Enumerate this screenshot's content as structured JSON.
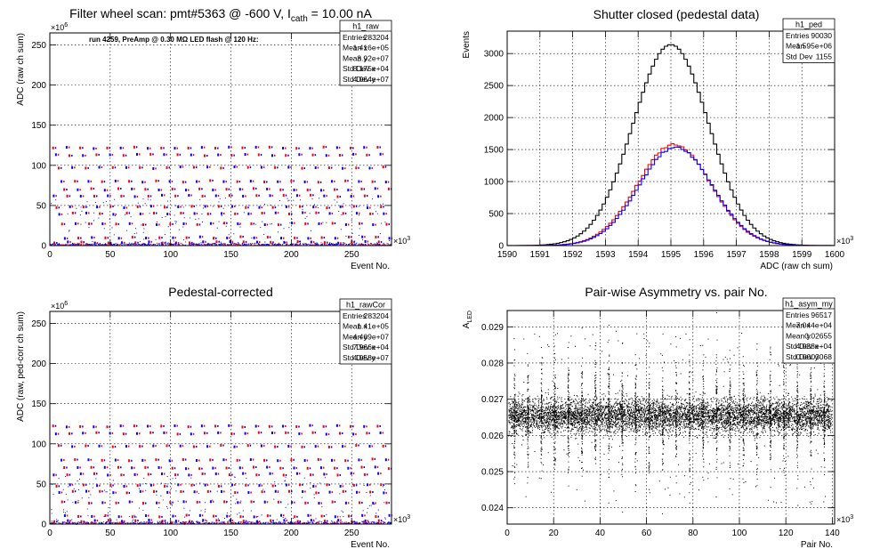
{
  "colors": {
    "red": "#ff0000",
    "blue": "#0000ff",
    "black": "#000000"
  },
  "chart_data": [
    {
      "id": "raw",
      "type": "scatter",
      "title": "Filter wheel scan: pmt#5363 @  -600 V, I",
      "title_sub": "cath",
      "title_tail": " = 10.00 nA",
      "annotation": "run 4259, PreAmp @ 0.30 MΩ LED flash @  120 Hz:",
      "xlabel": "Event No.",
      "ylabel": "ADC (raw ch sum)",
      "x_exponent": "×10",
      "x_exponent_power": "3",
      "y_exponent": "×10",
      "y_exponent_power": "6",
      "xlim": [
        0,
        283
      ],
      "ylim": [
        0,
        265
      ],
      "xticks": [
        0,
        50,
        100,
        150,
        200,
        250
      ],
      "yticks": [
        0,
        50,
        100,
        150,
        200,
        250
      ],
      "levels": [
        122,
        113,
        97,
        80,
        70,
        62,
        48,
        40,
        27,
        10,
        4
      ],
      "stats": {
        "name": "h1_raw",
        "rows": [
          [
            "Entries",
            "283204"
          ],
          [
            "Mean x",
            "1.416e+05"
          ],
          [
            "Mean y",
            "3.92e+07"
          ],
          [
            "Std Dev x",
            "8.175e+04"
          ],
          [
            "Std Dev y",
            "4.064e+07"
          ]
        ]
      }
    },
    {
      "id": "ped",
      "type": "line",
      "title": "Shutter closed (pedestal data)",
      "xlabel": "ADC (raw ch sum)",
      "ylabel": "Events",
      "x_exponent": "×10",
      "x_exponent_power": "3",
      "xlim": [
        1590,
        1600
      ],
      "ylim": [
        0,
        3350
      ],
      "xticks": [
        1590,
        1591,
        1592,
        1593,
        1594,
        1595,
        1596,
        1597,
        1598,
        1599,
        1600
      ],
      "yticks": [
        0,
        500,
        1000,
        1500,
        2000,
        2500,
        3000
      ],
      "series": [
        {
          "color": "black",
          "mean": 1595.0,
          "sigma": 1.155,
          "peak": 3140
        },
        {
          "color": "red",
          "mean": 1595.1,
          "sigma": 1.12,
          "peak": 1580
        },
        {
          "color": "blue",
          "mean": 1595.15,
          "sigma": 1.12,
          "peak": 1540
        }
      ],
      "stats": {
        "name": "h1_ped",
        "rows": [
          [
            "Entries",
            "90030"
          ],
          [
            "Mean",
            "1.595e+06"
          ],
          [
            "Std Dev",
            "1155"
          ]
        ]
      }
    },
    {
      "id": "rawCor",
      "type": "scatter",
      "title": "Pedestal-corrected",
      "xlabel": "Event No.",
      "ylabel": "ADC (raw, ped-corr ch sum)",
      "x_exponent": "×10",
      "x_exponent_power": "3",
      "y_exponent": "×10",
      "y_exponent_power": "6",
      "xlim": [
        0,
        283
      ],
      "ylim": [
        0,
        265
      ],
      "xticks": [
        0,
        50,
        100,
        150,
        200,
        250
      ],
      "yticks": [
        0,
        50,
        100,
        150,
        200,
        250
      ],
      "levels": [
        122,
        113,
        97,
        80,
        70,
        62,
        48,
        40,
        27,
        10,
        4
      ],
      "stats": {
        "name": "h1_rawCor",
        "rows": [
          [
            "Entries",
            "283204"
          ],
          [
            "Mean x",
            "1.41e+05"
          ],
          [
            "Mean y",
            "4.469e+07"
          ],
          [
            "Std Dev x",
            "7.966e+04"
          ],
          [
            "Std Dev y",
            "4.058e+07"
          ]
        ]
      }
    },
    {
      "id": "asym",
      "type": "scatter",
      "title": "Pair-wise Asymmetry vs. pair No.",
      "xlabel": "Pair No.",
      "ylabel": "A",
      "ylabel_sub": "LED",
      "x_exponent": "×10",
      "x_exponent_power": "3",
      "xlim": [
        0,
        141
      ],
      "ylim": [
        0.02355,
        0.02945
      ],
      "xticks": [
        0,
        20,
        40,
        60,
        80,
        100,
        120,
        140
      ],
      "yticks": [
        0.024,
        0.025,
        0.026,
        0.027,
        0.028,
        0.029
      ],
      "yticklabels": [
        "0.024",
        "0.025",
        "0.026",
        "0.027",
        "0.028",
        "0.029"
      ],
      "center": 0.02655,
      "stats": {
        "name": "h1_asym_my",
        "rows": [
          [
            "Entries",
            "96517"
          ],
          [
            "Mean x",
            "7.044e+04"
          ],
          [
            "Mean y",
            "0.02655"
          ],
          [
            "Std Dev x",
            "4.038e+04"
          ],
          [
            "Std Dev y",
            "0.0003068"
          ]
        ]
      }
    }
  ]
}
